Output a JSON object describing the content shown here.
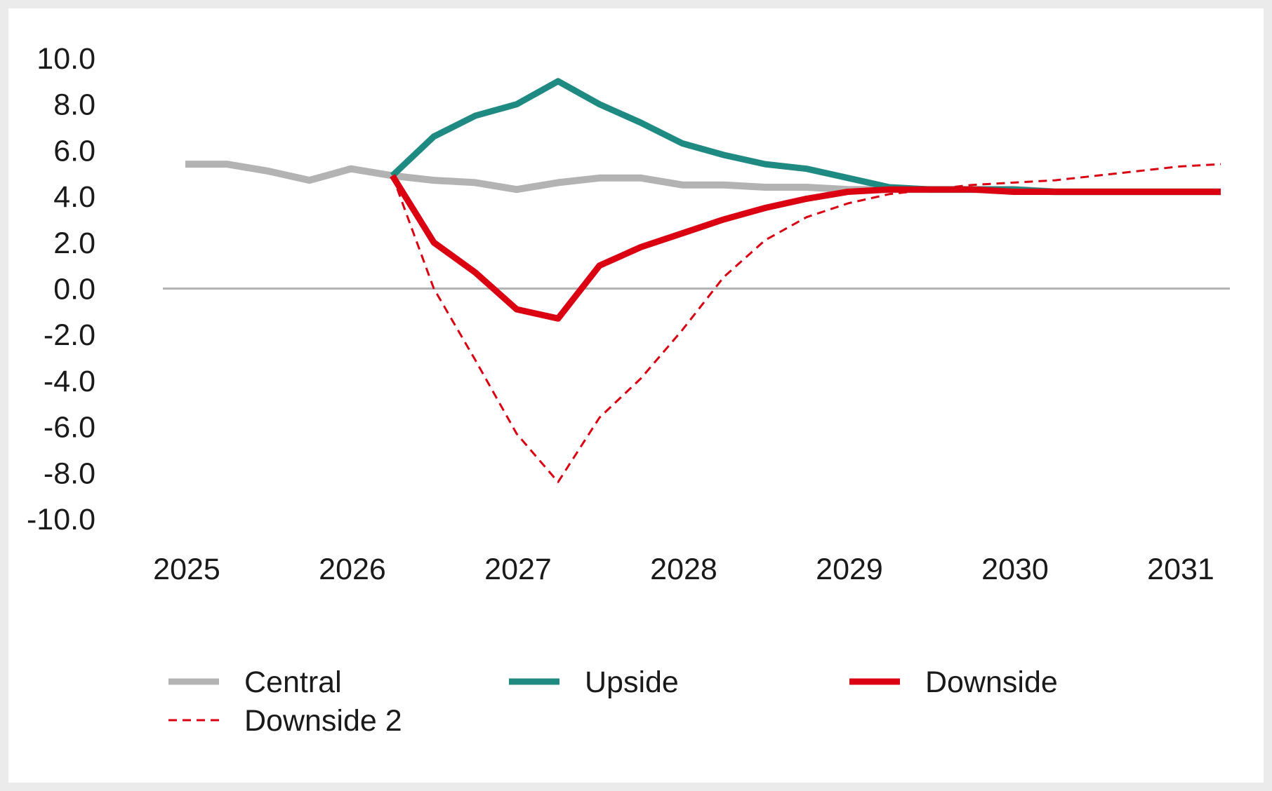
{
  "chart_data": {
    "type": "line",
    "title": "",
    "xlabel": "",
    "ylabel": "",
    "ylim": [
      -10,
      10
    ],
    "yticks": [
      "10.0",
      "8.0",
      "6.0",
      "4.0",
      "2.0",
      "0.0",
      "-2.0",
      "-4.0",
      "-6.0",
      "-8.0",
      "-10.0"
    ],
    "xticks": [
      "2025",
      "2026",
      "2027",
      "2028",
      "2029",
      "2030",
      "2031"
    ],
    "x": [
      "2025 Q1",
      "2025 Q2",
      "2025 Q3",
      "2025 Q4",
      "2026 Q1",
      "2026 Q2",
      "2026 Q3",
      "2026 Q4",
      "2027 Q1",
      "2027 Q2",
      "2027 Q3",
      "2027 Q4",
      "2028 Q1",
      "2028 Q2",
      "2028 Q3",
      "2028 Q4",
      "2029 Q1",
      "2029 Q2",
      "2029 Q3",
      "2029 Q4",
      "2030 Q1",
      "2030 Q2",
      "2030 Q3",
      "2030 Q4",
      "2031 Q1",
      "2031 Q2"
    ],
    "grid": false,
    "legend_position": "bottom",
    "series": [
      {
        "name": "Central",
        "color": "#b3b3b3",
        "style": "solid",
        "values": [
          5.4,
          5.4,
          5.1,
          4.7,
          5.2,
          4.9,
          4.7,
          4.6,
          4.3,
          4.6,
          4.8,
          4.8,
          4.5,
          4.5,
          4.4,
          4.4,
          4.3,
          4.3,
          4.3,
          4.3,
          4.3,
          4.2,
          4.2,
          4.2,
          4.2,
          4.2
        ]
      },
      {
        "name": "Upside",
        "color": "#1f8a82",
        "style": "solid",
        "values": [
          null,
          null,
          null,
          null,
          null,
          4.9,
          6.6,
          7.5,
          8.0,
          9.0,
          8.0,
          7.2,
          6.3,
          5.8,
          5.4,
          5.2,
          4.8,
          4.4,
          4.3,
          4.3,
          4.3,
          4.2,
          4.2,
          4.2,
          4.2,
          4.2
        ]
      },
      {
        "name": "Downside",
        "color": "#db0011",
        "style": "solid",
        "values": [
          null,
          null,
          null,
          null,
          null,
          4.9,
          2.0,
          0.7,
          -0.9,
          -1.3,
          1.0,
          1.8,
          2.4,
          3.0,
          3.5,
          3.9,
          4.2,
          4.3,
          4.3,
          4.3,
          4.2,
          4.2,
          4.2,
          4.2,
          4.2,
          4.2
        ]
      },
      {
        "name": "Downside 2",
        "color": "#db0011",
        "style": "dashed",
        "values": [
          null,
          null,
          null,
          null,
          null,
          4.9,
          0.0,
          -3.1,
          -6.3,
          -8.4,
          -5.6,
          -3.9,
          -1.8,
          0.5,
          2.1,
          3.1,
          3.7,
          4.1,
          4.3,
          4.5,
          4.6,
          4.7,
          4.9,
          5.1,
          5.3,
          5.4
        ]
      }
    ]
  }
}
